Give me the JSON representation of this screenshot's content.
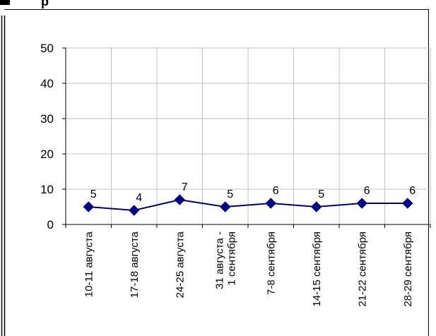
{
  "colors": {
    "line": "#000066",
    "marker": "#000080",
    "grid": "#c0c0c0",
    "axis": "#000000",
    "background": "#ffffff"
  },
  "top_fragment": "p",
  "chart_data": {
    "type": "line",
    "title": "",
    "xlabel": "",
    "ylabel": "",
    "ylim": [
      0,
      50
    ],
    "yticks": [
      0,
      10,
      20,
      30,
      40,
      50
    ],
    "grid": true,
    "legend": "none",
    "categories": [
      [
        "10-11 августа"
      ],
      [
        "17-18 августа"
      ],
      [
        "24-25 августа"
      ],
      [
        "31 августа -",
        "1 сентября"
      ],
      [
        "7-8 сентября"
      ],
      [
        "14-15 сентября"
      ],
      [
        "21-22 сентября"
      ],
      [
        "28-29 сентября"
      ]
    ],
    "series": [
      {
        "values": [
          5,
          4,
          7,
          5,
          6,
          5,
          6,
          6
        ]
      }
    ]
  }
}
